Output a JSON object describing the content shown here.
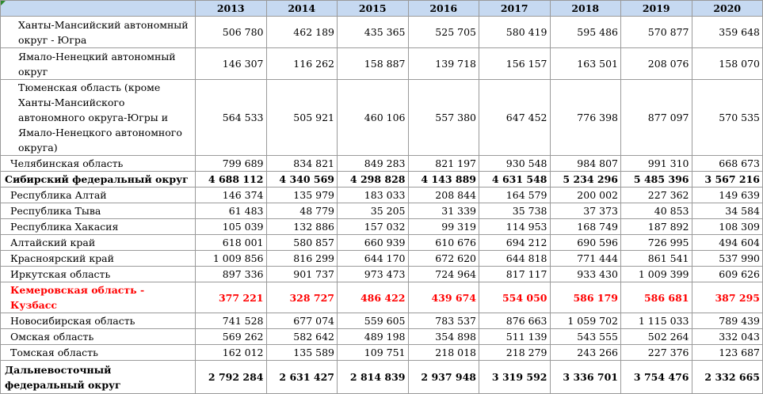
{
  "years": [
    "2013",
    "2014",
    "2015",
    "2016",
    "2017",
    "2018",
    "2019",
    "2020"
  ],
  "rows": [
    {
      "name": "Ханты-Мансийский автономный округ - Югра",
      "type": "sub",
      "values": [
        "506 780",
        "462 189",
        "435 365",
        "525 705",
        "580 419",
        "595 486",
        "570 877",
        "359 648"
      ]
    },
    {
      "name": "Ямало-Ненецкий автономный округ",
      "type": "sub",
      "values": [
        "146 307",
        "116 262",
        "158 887",
        "139 718",
        "156 157",
        "163 501",
        "208 076",
        "158 070"
      ]
    },
    {
      "name": "Тюменская область (кроме Ханты-Мансийского автономного округа-Югры и Ямало-Ненецкого автономного округа)",
      "type": "sub",
      "values": [
        "564 533",
        "505 921",
        "460 106",
        "557 380",
        "647 452",
        "776 398",
        "877 097",
        "570 535"
      ]
    },
    {
      "name": "Челябинская область",
      "type": "plain",
      "values": [
        "799 689",
        "834 821",
        "849 283",
        "821 197",
        "930 548",
        "984 807",
        "991 310",
        "668 673"
      ]
    },
    {
      "name": "Сибирский федеральный округ",
      "type": "region",
      "values": [
        "4 688 112",
        "4 340 569",
        "4 298 828",
        "4 143 889",
        "4 631 548",
        "5 234 296",
        "5 485 396",
        "3 567 216"
      ]
    },
    {
      "name": "Республика Алтай",
      "type": "plain",
      "values": [
        "146 374",
        "135 979",
        "183 033",
        "208 844",
        "164 579",
        "200 002",
        "227 362",
        "149 639"
      ]
    },
    {
      "name": "Республика Тыва",
      "type": "plain",
      "values": [
        "61 483",
        "48 779",
        "35 205",
        "31 339",
        "35 738",
        "37 373",
        "40 853",
        "34 584"
      ]
    },
    {
      "name": "Республика Хакасия",
      "type": "plain",
      "values": [
        "105 039",
        "132 886",
        "157 032",
        "99 319",
        "114 953",
        "168 749",
        "187 892",
        "108 309"
      ]
    },
    {
      "name": "Алтайский край",
      "type": "plain",
      "values": [
        "618 001",
        "580 857",
        "660 939",
        "610 676",
        "694 212",
        "690 596",
        "726 995",
        "494 604"
      ]
    },
    {
      "name": "Красноярский край",
      "type": "plain",
      "values": [
        "1 009 856",
        "816 299",
        "644 170",
        "672 620",
        "644 818",
        "771 444",
        "861 541",
        "537 990"
      ]
    },
    {
      "name": "Иркутская область",
      "type": "plain",
      "values": [
        "897 336",
        "901 737",
        "973 473",
        "724 964",
        "817 117",
        "933 430",
        "1 009 399",
        "609 626"
      ]
    },
    {
      "name": "Кемеровская область - Кузбасс",
      "type": "highlight",
      "values": [
        "377 221",
        "328 727",
        "486 422",
        "439 674",
        "554 050",
        "586 179",
        "586 681",
        "387 295"
      ]
    },
    {
      "name": "Новосибирская область",
      "type": "plain",
      "values": [
        "741 528",
        "677 074",
        "559 605",
        "783 537",
        "876 663",
        "1 059 702",
        "1 115 033",
        "789 439"
      ]
    },
    {
      "name": "Омская область",
      "type": "plain",
      "values": [
        "569 262",
        "582 642",
        "489 198",
        "354 898",
        "511 139",
        "543 555",
        "502 264",
        "332 043"
      ]
    },
    {
      "name": "Томская область",
      "type": "plain",
      "values": [
        "162 012",
        "135 589",
        "109 751",
        "218 018",
        "218 279",
        "243 266",
        "227 376",
        "123 687"
      ]
    },
    {
      "name": "Дальневосточный федеральный округ",
      "type": "region",
      "values": [
        "2 792 284",
        "2 631 427",
        "2 814 839",
        "2 937 948",
        "3 319 592",
        "3 336 701",
        "3 754 476",
        "2 332 665"
      ]
    }
  ]
}
